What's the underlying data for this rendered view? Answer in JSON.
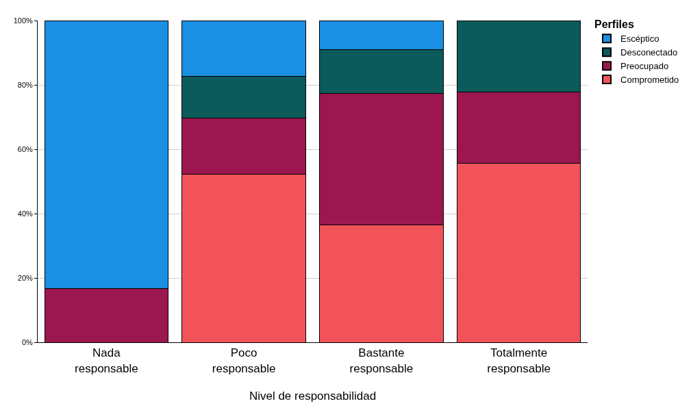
{
  "chart_data": {
    "type": "bar",
    "stacked": true,
    "xlabel": "Nivel de responsabilidad",
    "legend_title": "Perfiles",
    "legend": "top right",
    "categories": [
      "Nada\nresponsable",
      "Poco\nresponsable",
      "Bastante\nresponsable",
      "Totalmente\nresponsable"
    ],
    "series": [
      {
        "name": "Comprometido",
        "color": "#f2535b",
        "values": [
          0,
          52.2,
          36.4,
          55.6
        ]
      },
      {
        "name": "Preocupado",
        "color": "#9c174f",
        "values": [
          16.7,
          17.4,
          40.9,
          22.2
        ]
      },
      {
        "name": "Desconectado",
        "color": "#0c5a59",
        "values": [
          0,
          13.0,
          13.6,
          22.2
        ]
      },
      {
        "name": "Escéptico",
        "color": "#1a8fe3",
        "values": [
          83.3,
          17.4,
          9.1,
          0
        ]
      }
    ],
    "ylim": [
      0,
      100
    ],
    "yticks": [
      {
        "value": 0,
        "label": "0%"
      },
      {
        "value": 20,
        "label": "20%"
      },
      {
        "value": 40,
        "label": "40%"
      },
      {
        "value": 60,
        "label": "60%"
      },
      {
        "value": 80,
        "label": "80%"
      },
      {
        "value": 100,
        "label": "100%"
      }
    ],
    "grid": "y"
  }
}
